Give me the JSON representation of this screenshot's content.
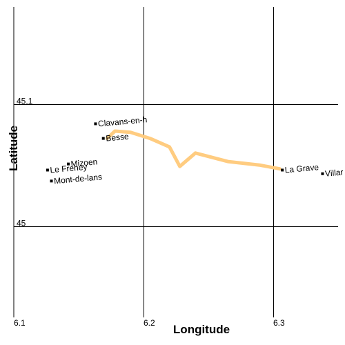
{
  "chart_data": {
    "type": "map",
    "xlabel": "Longitude",
    "ylabel": "Latitude",
    "x_ticks": [
      {
        "value": 6.1,
        "label": "6.1"
      },
      {
        "value": 6.2,
        "label": "6.2"
      },
      {
        "value": 6.3,
        "label": "6.3"
      }
    ],
    "y_ticks": [
      {
        "value": 45.1,
        "label": "45.1"
      },
      {
        "value": 45.0,
        "label": "45"
      }
    ],
    "xlim": [
      6.1,
      6.35
    ],
    "ylim": [
      44.925,
      45.18
    ],
    "grid": true,
    "route": {
      "color": "#ffcc80",
      "points": [
        [
          6.172,
          45.072
        ],
        [
          6.178,
          45.078
        ],
        [
          6.19,
          45.077
        ],
        [
          6.205,
          45.072
        ],
        [
          6.22,
          45.065
        ],
        [
          6.228,
          45.049
        ],
        [
          6.24,
          45.06
        ],
        [
          6.265,
          45.053
        ],
        [
          6.29,
          45.05
        ],
        [
          6.305,
          45.047
        ]
      ]
    },
    "places": [
      {
        "name": "Clavans-en-h",
        "lon": 6.163,
        "lat": 45.084,
        "angle": -5
      },
      {
        "name": "Besse",
        "lon": 6.169,
        "lat": 45.072,
        "angle": -5
      },
      {
        "name": "Mizoen",
        "lon": 6.142,
        "lat": 45.051,
        "angle": -5
      },
      {
        "name": "Le Freney",
        "lon": 6.126,
        "lat": 45.046,
        "angle": -5
      },
      {
        "name": "Mont-de-lans",
        "lon": 6.129,
        "lat": 45.037,
        "angle": -5
      },
      {
        "name": "La Grave",
        "lon": 6.307,
        "lat": 45.046,
        "angle": -5
      },
      {
        "name": "Villar",
        "lon": 6.338,
        "lat": 45.043,
        "angle": -5
      }
    ]
  }
}
